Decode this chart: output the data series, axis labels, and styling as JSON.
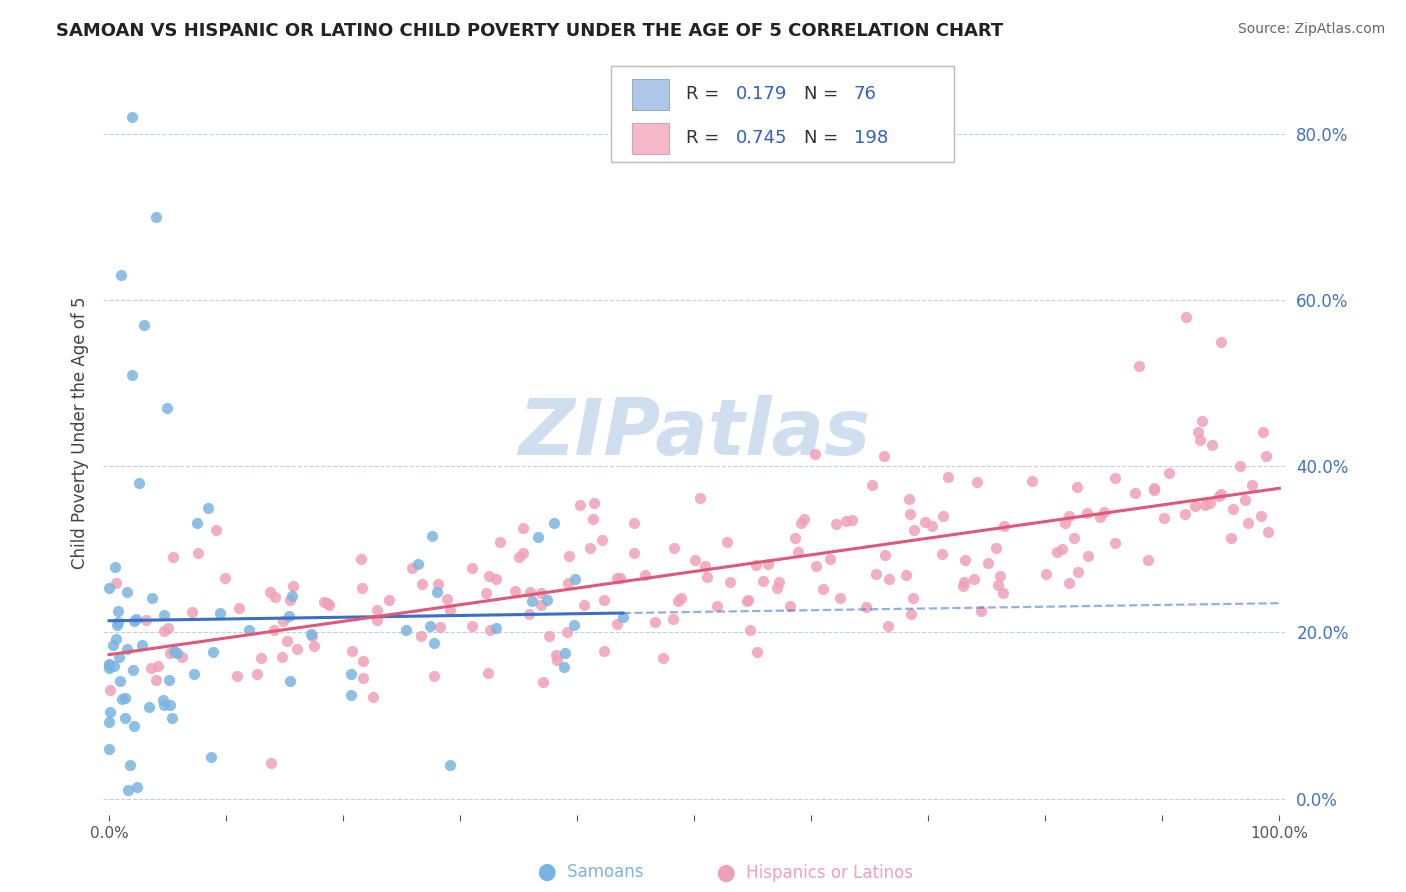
{
  "title": "SAMOAN VS HISPANIC OR LATINO CHILD POVERTY UNDER THE AGE OF 5 CORRELATION CHART",
  "source": "Source: ZipAtlas.com",
  "ylabel_label": "Child Poverty Under the Age of 5",
  "samoan_color": "#7ab4e0",
  "samoan_line_color": "#3a6fc4",
  "samoan_line_dashed_color": "#7ab4e0",
  "hispanic_color": "#f0a0b8",
  "hispanic_line_color": "#e05878",
  "background_color": "#ffffff",
  "grid_color": "#c0d0e0",
  "watermark_color": "#d0dff0",
  "ytick_color": "#4472c4",
  "xtick_color": "#555555",
  "legend_box_color": "#aec6e8",
  "legend_box2_color": "#f4b8c8",
  "legend_text_color": "#333333",
  "legend_num_color": "#3060c0"
}
